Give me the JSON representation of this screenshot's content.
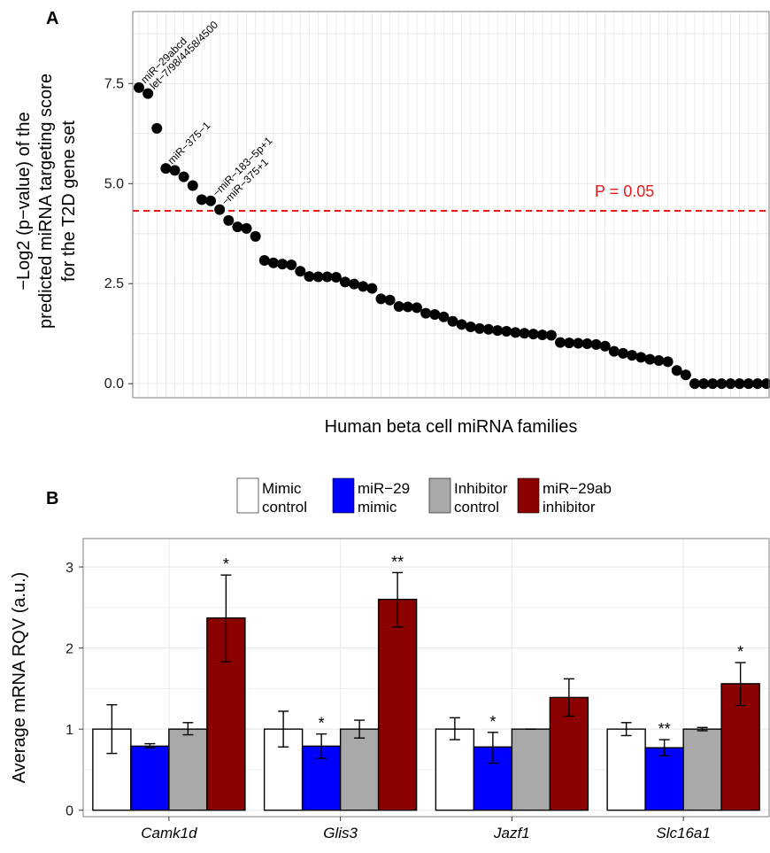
{
  "panel_a": {
    "letter": "A",
    "threshold_label": "P = 0.05",
    "colors": {
      "points": "#000000",
      "threshold": "#e41a1c",
      "panel_border": "#7f7f7f",
      "grid": "#e8e8e8"
    },
    "chart_data": {
      "type": "scatter",
      "xlabel": "Human beta cell miRNA families",
      "ylabel_lines": [
        "−Log2 (p−value) of the",
        "predicted miRNA targeting score",
        "for the T2D gene set"
      ],
      "ylim": [
        -0.35,
        9.3
      ],
      "y_ticks": [
        0.0,
        2.5,
        5.0,
        7.5
      ],
      "y_tick_labels": [
        "0.0",
        "2.5",
        "5.0",
        "7.5"
      ],
      "threshold_y": 4.32,
      "grid": true,
      "points_y": [
        7.4,
        7.25,
        6.38,
        5.38,
        5.33,
        5.17,
        4.95,
        4.6,
        4.57,
        4.35,
        4.08,
        3.92,
        3.88,
        3.68,
        3.08,
        3.02,
        2.99,
        2.97,
        2.81,
        2.68,
        2.67,
        2.67,
        2.66,
        2.54,
        2.49,
        2.43,
        2.38,
        2.12,
        2.09,
        1.93,
        1.92,
        1.9,
        1.76,
        1.73,
        1.67,
        1.56,
        1.48,
        1.42,
        1.38,
        1.36,
        1.33,
        1.31,
        1.28,
        1.26,
        1.24,
        1.22,
        1.21,
        1.03,
        1.02,
        1.01,
        1.0,
        0.98,
        0.94,
        0.81,
        0.76,
        0.71,
        0.66,
        0.61,
        0.58,
        0.55,
        0.33,
        0.22,
        0.0,
        0.0,
        0.0,
        0.0,
        0.0,
        0.0,
        0.0,
        0.0,
        0.0
      ],
      "annotations": [
        {
          "index": 0,
          "text": "miR−29abcd"
        },
        {
          "index": 1,
          "text": "let−7/98/4458/4500"
        },
        {
          "index": 3,
          "text": "miR−375−1"
        },
        {
          "index": 8,
          "text": "−miR−183−5p+1"
        },
        {
          "index": 9,
          "text": "−miR−375+1"
        }
      ]
    }
  },
  "panel_b": {
    "letter": "B",
    "legend": [
      {
        "line1": "Mimic",
        "line2": "control",
        "color": "#ffffff"
      },
      {
        "line1": "miR−29",
        "line2": "mimic",
        "color": "#0000ff"
      },
      {
        "line1": "Inhibitor",
        "line2": "control",
        "color": "#a9a9a9"
      },
      {
        "line1": "miR−29ab",
        "line2": "inhibitor",
        "color": "#8b0000"
      }
    ],
    "colors": {
      "bar_outline": "#000000",
      "panel_border": "#7f7f7f",
      "grid": "#ebebeb"
    },
    "chart_data": {
      "type": "bar",
      "categories": [
        "Camk1d",
        "Glis3",
        "Jazf1",
        "Slc16a1"
      ],
      "ylabel": "Average mRNA RQV (a.u.)",
      "ylim": [
        -0.08,
        3.35
      ],
      "y_ticks": [
        0,
        1,
        2,
        3
      ],
      "y_tick_labels": [
        "0",
        "1",
        "2",
        "3"
      ],
      "grid": true,
      "legend_position": "top",
      "series": [
        {
          "name": "Mimic control",
          "values": [
            1.0,
            1.0,
            1.0,
            1.0
          ],
          "err_low": [
            0.7,
            0.78,
            0.87,
            0.92
          ],
          "err_high": [
            1.3,
            1.22,
            1.14,
            1.08
          ]
        },
        {
          "name": "miR−29 mimic",
          "values": [
            0.79,
            0.79,
            0.78,
            0.77
          ],
          "err_low": [
            0.77,
            0.64,
            0.58,
            0.67
          ],
          "err_high": [
            0.82,
            0.94,
            0.96,
            0.87
          ]
        },
        {
          "name": "Inhibitor control",
          "values": [
            1.0,
            1.0,
            1.0,
            1.0
          ],
          "err_low": [
            0.93,
            0.89,
            1.0,
            0.98
          ],
          "err_high": [
            1.08,
            1.11,
            1.0,
            1.02
          ]
        },
        {
          "name": "miR−29ab inhibitor",
          "values": [
            2.37,
            2.6,
            1.39,
            1.56
          ],
          "err_low": [
            1.83,
            2.26,
            1.16,
            1.29
          ],
          "err_high": [
            2.9,
            2.93,
            1.62,
            1.82
          ]
        }
      ],
      "significance": [
        {
          "category": 0,
          "series": 3,
          "text": "*"
        },
        {
          "category": 1,
          "series": 1,
          "text": "*"
        },
        {
          "category": 1,
          "series": 3,
          "text": "**"
        },
        {
          "category": 2,
          "series": 1,
          "text": "*"
        },
        {
          "category": 3,
          "series": 1,
          "text": "**"
        },
        {
          "category": 3,
          "series": 3,
          "text": "*"
        }
      ]
    }
  }
}
